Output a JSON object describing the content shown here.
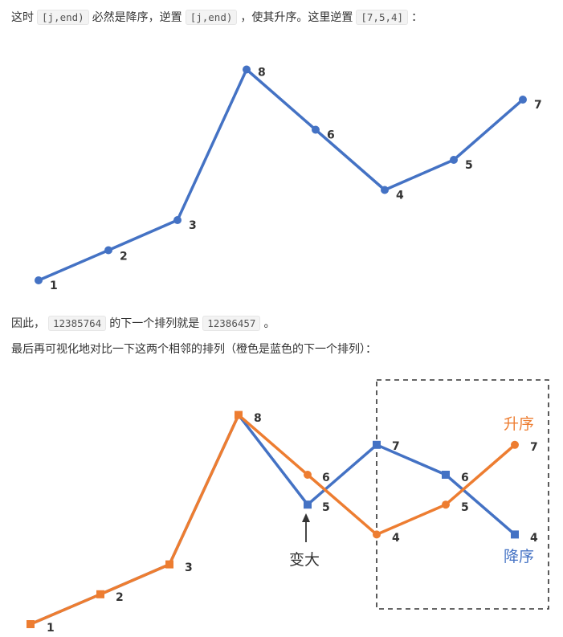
{
  "text": {
    "line1": {
      "p1": "这时",
      "c1": "[j,end)",
      "p2": "必然是降序，逆置",
      "c2": "[j,end)",
      "p3": "，使其升序。这里逆置",
      "c3": "[7,5,4]",
      "p4": "："
    },
    "line2": {
      "p1": "因此，",
      "c1": "12385764",
      "p2": "的下一个排列就是",
      "c2": "12386457",
      "p3": "。"
    },
    "line3": "最后再可视化地对比一下这两个相邻的排列（橙色是蓝色的下一个排列）："
  },
  "chart_data": [
    {
      "type": "line",
      "series": [
        {
          "values": [
            1,
            2,
            3,
            8,
            6,
            4,
            5,
            7
          ],
          "color": "#4472c4"
        }
      ],
      "point_labels": [
        "1",
        "2",
        "3",
        "8",
        "6",
        "4",
        "5",
        "7"
      ],
      "highlight_color": "#00b050"
    },
    {
      "type": "line",
      "series": [
        {
          "values": [
            1,
            2,
            3,
            8,
            5,
            7,
            6,
            4
          ],
          "color": "#4472c4"
        },
        {
          "values": [
            1,
            2,
            3,
            8,
            6,
            4,
            5,
            7
          ],
          "color": "#ed7d31"
        }
      ],
      "point_labels": [
        "1",
        "2",
        "3",
        "8",
        "5",
        "4",
        "6",
        "7"
      ],
      "label_6": "6",
      "label_5": "5",
      "label_7": "7",
      "label_6b": "6",
      "label_5b": "5",
      "label_4": "4",
      "annotations": {
        "bigger": "变大",
        "ascending": "升序",
        "descending": "降序"
      },
      "colors": {
        "green": "#00b050",
        "red": "#e81123",
        "orange": "#ed7d31",
        "blue": "#4472c4"
      }
    }
  ]
}
